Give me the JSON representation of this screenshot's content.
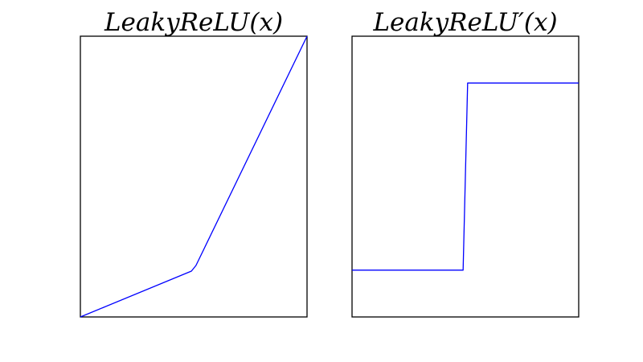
{
  "chart_data": [
    {
      "type": "line",
      "title": "LeakyReLU(x)",
      "xlabel": "",
      "ylabel": "",
      "xlim": [
        -1,
        1
      ],
      "ylim": [
        -0.2,
        1
      ],
      "grid": false,
      "ticks": "none",
      "series": [
        {
          "color": "#0000ff",
          "x": [
            -1,
            -0.02,
            0.02,
            1
          ],
          "y": [
            -0.2,
            -0.004,
            0.02,
            1
          ]
        }
      ]
    },
    {
      "type": "line",
      "title": "LeakyReLU′(x)",
      "xlabel": "",
      "ylabel": "",
      "xlim": [
        -1,
        1
      ],
      "ylim": [
        0,
        1.2
      ],
      "grid": false,
      "ticks": "none",
      "series": [
        {
          "color": "#0000ff",
          "x": [
            -1,
            -0.02,
            0.02,
            1
          ],
          "y": [
            0.2,
            0.2,
            1,
            1
          ]
        }
      ]
    }
  ]
}
